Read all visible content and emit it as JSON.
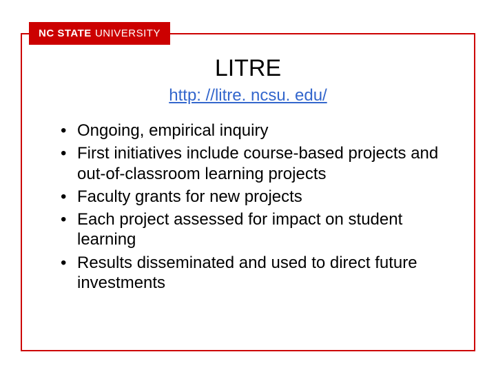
{
  "logo": {
    "part1": "NC STATE",
    "part2": "UNIVERSITY",
    "bg_color": "#cc0000",
    "text_color": "#ffffff"
  },
  "frame": {
    "border_color": "#cc0000",
    "border_width": 2
  },
  "title": {
    "text": "LITRE",
    "fontsize": 34,
    "color": "#000000"
  },
  "link": {
    "text": "http: //litre. ncsu. edu/",
    "color": "#3366cc",
    "fontsize": 24
  },
  "bullets": {
    "fontsize": 24,
    "color": "#000000",
    "items": [
      "Ongoing, empirical inquiry",
      "First initiatives include course-based projects and out-of-classroom learning projects",
      "Faculty grants for new projects",
      "Each project assessed for impact on student learning",
      "Results disseminated and used to direct future investments"
    ]
  },
  "background_color": "#ffffff"
}
